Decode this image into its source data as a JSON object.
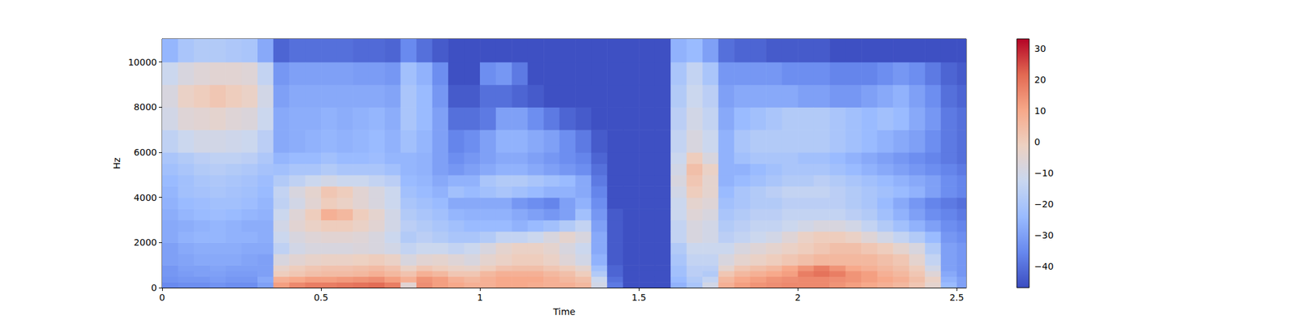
{
  "chart_data": {
    "type": "heatmap",
    "x_label": "Time",
    "y_label": "Hz",
    "xlim": [
      0,
      2.53
    ],
    "xticks": [
      0,
      0.5,
      1,
      1.5,
      2,
      2.5
    ],
    "ylim": [
      0,
      11025
    ],
    "yticks": [
      0,
      2000,
      4000,
      6000,
      8000,
      10000
    ],
    "colorbar_range": [
      -46.8,
      33.2
    ],
    "colorbar_ticks": [
      {
        "value": -40,
        "label": "−40"
      },
      {
        "value": -30,
        "label": "−30"
      },
      {
        "value": -20,
        "label": "−20"
      },
      {
        "value": -10,
        "label": "−10"
      },
      0,
      10,
      20,
      30
    ],
    "time_edges": [
      0,
      0.05,
      0.1,
      0.15,
      0.2,
      0.25,
      0.3,
      0.35,
      0.4,
      0.45,
      0.5,
      0.55,
      0.6,
      0.65,
      0.7,
      0.75,
      0.8,
      0.85,
      0.9,
      0.95,
      1.0,
      1.05,
      1.1,
      1.15,
      1.2,
      1.25,
      1.3,
      1.35,
      1.4,
      1.45,
      1.5,
      1.55,
      1.6,
      1.65,
      1.7,
      1.75,
      1.8,
      1.85,
      1.9,
      1.95,
      2.0,
      2.05,
      2.1,
      2.15,
      2.2,
      2.25,
      2.3,
      2.35,
      2.4,
      2.45,
      2.5,
      2.53
    ],
    "freq_edges": [
      0,
      250,
      500,
      750,
      1000,
      1500,
      2000,
      2500,
      3000,
      3500,
      4000,
      4500,
      5000,
      5500,
      6000,
      7000,
      8000,
      9000,
      10000,
      11025
    ],
    "db": [
      [
        -35,
        -33,
        -32,
        -32,
        -30,
        -30,
        -28,
        -28,
        -27,
        -26,
        -25,
        -24,
        -22,
        -20,
        -15,
        -10,
        -8,
        -12,
        -25
      ],
      [
        -34,
        -32,
        -31,
        -30,
        -29,
        -28,
        -26,
        -27,
        -25,
        -24,
        -22,
        -22,
        -20,
        -18,
        -12,
        -6,
        -2,
        -8,
        -20
      ],
      [
        -34,
        -32,
        -30,
        -30,
        -28,
        -27,
        -25,
        -26,
        -24,
        -23,
        -21,
        -20,
        -18,
        -16,
        -10,
        -5,
        0,
        -6,
        -18
      ],
      [
        -33,
        -31,
        -30,
        -29,
        -28,
        -27,
        -25,
        -25,
        -23,
        -22,
        -20,
        -19,
        -17,
        -15,
        -10,
        -4,
        2,
        -5,
        -18
      ],
      [
        -34,
        -32,
        -31,
        -30,
        -28,
        -27,
        -26,
        -26,
        -24,
        -22,
        -21,
        -20,
        -18,
        -15,
        -11,
        -6,
        0,
        -5,
        -19
      ],
      [
        -34,
        -32,
        -31,
        -30,
        -29,
        -28,
        -26,
        -27,
        -25,
        -23,
        -22,
        -21,
        -19,
        -16,
        -12,
        -7,
        -2,
        -6,
        -20
      ],
      [
        -30,
        -28,
        -30,
        -30,
        -30,
        -28,
        -27,
        -27,
        -26,
        -25,
        -24,
        -23,
        -21,
        -19,
        -16,
        -12,
        -10,
        -14,
        -28
      ],
      [
        12,
        8,
        0,
        -3,
        -8,
        -15,
        -12,
        -10,
        -12,
        -15,
        -14,
        -18,
        -22,
        -25,
        -28,
        -28,
        -30,
        -32,
        -42
      ],
      [
        16,
        10,
        2,
        0,
        -5,
        -10,
        -8,
        -5,
        -6,
        -10,
        -8,
        -15,
        -20,
        -24,
        -27,
        -27,
        -28,
        -30,
        -40
      ],
      [
        18,
        12,
        4,
        2,
        -3,
        -8,
        -6,
        -2,
        0,
        -5,
        -4,
        -12,
        -20,
        -24,
        -26,
        -27,
        -28,
        -30,
        -40
      ],
      [
        18,
        12,
        5,
        3,
        -2,
        -8,
        -5,
        0,
        8,
        0,
        2,
        -10,
        -18,
        -22,
        -25,
        -26,
        -28,
        -30,
        -40
      ],
      [
        19,
        13,
        5,
        3,
        -2,
        -8,
        -5,
        0,
        6,
        -2,
        0,
        -12,
        -20,
        -24,
        -26,
        -27,
        -28,
        -30,
        -40
      ],
      [
        20,
        14,
        6,
        4,
        -1,
        -7,
        -6,
        -2,
        0,
        -5,
        -5,
        -12,
        -20,
        -24,
        -25,
        -26,
        -28,
        -31,
        -41
      ],
      [
        21,
        15,
        8,
        5,
        0,
        -8,
        -8,
        -5,
        -4,
        -8,
        -8,
        -14,
        -20,
        -23,
        -24,
        -25,
        -28,
        -31,
        -41
      ],
      [
        18,
        12,
        6,
        3,
        -2,
        -10,
        -12,
        -10,
        -10,
        -12,
        -12,
        -16,
        -22,
        -25,
        -26,
        -27,
        -29,
        -32,
        -42
      ],
      [
        -5,
        8,
        3,
        -2,
        -8,
        -14,
        -18,
        -16,
        -18,
        -20,
        -22,
        -24,
        -25,
        -25,
        -22,
        -20,
        -20,
        -22,
        -35
      ],
      [
        15,
        14,
        8,
        2,
        -5,
        -12,
        -16,
        -18,
        -20,
        -22,
        -24,
        -25,
        -26,
        -26,
        -25,
        -24,
        -24,
        -26,
        -40
      ],
      [
        12,
        12,
        6,
        0,
        -4,
        -12,
        -18,
        -20,
        -22,
        -24,
        -26,
        -28,
        -30,
        -30,
        -30,
        -30,
        -32,
        -34,
        -44
      ],
      [
        10,
        8,
        2,
        -2,
        -6,
        -14,
        -20,
        -22,
        -25,
        -28,
        -22,
        -26,
        -32,
        -34,
        -36,
        -40,
        -44,
        -46,
        -46
      ],
      [
        8,
        6,
        2,
        -3,
        -8,
        -12,
        -20,
        -24,
        -26,
        -28,
        -24,
        -26,
        -30,
        -32,
        -34,
        -40,
        -44,
        -46,
        -46
      ],
      [
        8,
        8,
        6,
        0,
        -4,
        -8,
        -18,
        -24,
        -26,
        -28,
        -22,
        -20,
        -28,
        -30,
        -30,
        -38,
        -40,
        -34,
        -46
      ],
      [
        10,
        10,
        8,
        3,
        -2,
        -4,
        -14,
        -24,
        -26,
        -28,
        -20,
        -18,
        -26,
        -28,
        -26,
        -30,
        -40,
        -32,
        -46
      ],
      [
        10,
        10,
        8,
        4,
        0,
        -2,
        -14,
        -26,
        -28,
        -32,
        -22,
        -18,
        -26,
        -28,
        -26,
        -30,
        -42,
        -38,
        -46
      ],
      [
        9,
        10,
        8,
        4,
        0,
        -2,
        -12,
        -24,
        -30,
        -34,
        -24,
        -20,
        -28,
        -30,
        -28,
        -34,
        -44,
        -46,
        -46
      ],
      [
        8,
        8,
        6,
        2,
        -2,
        -4,
        -8,
        -22,
        -32,
        -36,
        -26,
        -22,
        -30,
        -32,
        -30,
        -38,
        -46,
        -46,
        -46
      ],
      [
        8,
        6,
        4,
        0,
        -6,
        -8,
        -4,
        -18,
        -30,
        -30,
        -26,
        -24,
        -32,
        -34,
        -34,
        -42,
        -46,
        -46,
        -46
      ],
      [
        6,
        4,
        0,
        -4,
        -10,
        -12,
        -8,
        -14,
        -22,
        -26,
        -28,
        -28,
        -34,
        -36,
        -38,
        -44,
        -46,
        -46,
        -46
      ],
      [
        -10,
        -12,
        -18,
        -22,
        -26,
        -28,
        -28,
        -30,
        -32,
        -34,
        -36,
        -38,
        -40,
        -42,
        -44,
        -46,
        -46,
        -46,
        -46
      ],
      [
        -38,
        -40,
        -42,
        -42,
        -44,
        -44,
        -44,
        -44,
        -44,
        -46,
        -46,
        -46,
        -46,
        -46,
        -46,
        -46,
        -46,
        -46,
        -46
      ],
      [
        -46,
        -46,
        -46,
        -46,
        -46,
        -46,
        -46,
        -46,
        -46,
        -46,
        -46,
        -46,
        -46,
        -46,
        -46,
        -46,
        -46,
        -46,
        -46
      ],
      [
        -46,
        -46,
        -46,
        -46,
        -46,
        -46,
        -46,
        -46,
        -46,
        -46,
        -46,
        -46,
        -46,
        -46,
        -46,
        -46,
        -46,
        -46,
        -46
      ],
      [
        -46,
        -46,
        -46,
        -46,
        -46,
        -46,
        -46,
        -46,
        -46,
        -46,
        -46,
        -46,
        -46,
        -46,
        -46,
        -46,
        -46,
        -46,
        -46
      ],
      [
        -26,
        -24,
        -22,
        -22,
        -20,
        -18,
        -14,
        -14,
        -12,
        -12,
        -10,
        -8,
        -10,
        -12,
        -14,
        -16,
        -18,
        -20,
        -26
      ],
      [
        -20,
        -18,
        -16,
        -16,
        -14,
        -12,
        -8,
        -8,
        -6,
        -4,
        0,
        2,
        4,
        0,
        -8,
        -10,
        -12,
        -14,
        -24
      ],
      [
        -10,
        -14,
        -18,
        -16,
        -14,
        -12,
        -10,
        -10,
        -8,
        -6,
        -4,
        -4,
        -2,
        -8,
        -12,
        -14,
        -16,
        -20,
        -30
      ],
      [
        8,
        6,
        2,
        -4,
        -8,
        -12,
        -16,
        -18,
        -20,
        -22,
        -24,
        -26,
        -26,
        -26,
        -26,
        -28,
        -30,
        -32,
        -40
      ],
      [
        12,
        10,
        6,
        2,
        -4,
        -8,
        -14,
        -16,
        -18,
        -20,
        -20,
        -24,
        -26,
        -22,
        -20,
        -24,
        -28,
        -32,
        -42
      ],
      [
        14,
        12,
        8,
        4,
        -2,
        -6,
        -12,
        -14,
        -16,
        -18,
        -18,
        -22,
        -24,
        -20,
        -18,
        -22,
        -28,
        -32,
        -42
      ],
      [
        15,
        14,
        10,
        6,
        0,
        -4,
        -10,
        -14,
        -16,
        -18,
        -16,
        -20,
        -22,
        -20,
        -18,
        -20,
        -28,
        -32,
        -44
      ],
      [
        16,
        15,
        12,
        10,
        2,
        -2,
        -6,
        -12,
        -14,
        -16,
        -14,
        -18,
        -20,
        -20,
        -18,
        -18,
        -28,
        -34,
        -44
      ],
      [
        16,
        16,
        18,
        14,
        4,
        0,
        -2,
        -10,
        -14,
        -16,
        -14,
        -18,
        -20,
        -22,
        -18,
        -18,
        -30,
        -34,
        -44
      ],
      [
        16,
        16,
        20,
        18,
        6,
        2,
        0,
        -8,
        -14,
        -16,
        -14,
        -16,
        -20,
        -22,
        -18,
        -18,
        -30,
        -34,
        -44
      ],
      [
        14,
        15,
        18,
        14,
        6,
        4,
        0,
        -8,
        -14,
        -16,
        -16,
        -18,
        -22,
        -24,
        -20,
        -20,
        -32,
        -36,
        -46
      ],
      [
        12,
        14,
        14,
        10,
        6,
        4,
        -2,
        -10,
        -16,
        -18,
        -18,
        -20,
        -24,
        -26,
        -22,
        -22,
        -32,
        -36,
        -46
      ],
      [
        10,
        12,
        12,
        8,
        6,
        2,
        -6,
        -14,
        -18,
        -20,
        -20,
        -22,
        -26,
        -28,
        -24,
        -24,
        -30,
        -36,
        -46
      ],
      [
        8,
        10,
        8,
        6,
        4,
        0,
        -10,
        -18,
        -22,
        -24,
        -22,
        -24,
        -28,
        -30,
        -26,
        -22,
        -28,
        -34,
        -46
      ],
      [
        6,
        8,
        6,
        4,
        2,
        -4,
        -14,
        -22,
        -26,
        -28,
        -24,
        -26,
        -30,
        -32,
        -28,
        -24,
        -26,
        -32,
        -46
      ],
      [
        2,
        4,
        2,
        0,
        -4,
        -8,
        -18,
        -26,
        -30,
        -32,
        -26,
        -28,
        -32,
        -34,
        -30,
        -28,
        -30,
        -34,
        -46
      ],
      [
        -4,
        -2,
        -6,
        -10,
        -14,
        -18,
        -24,
        -30,
        -34,
        -36,
        -30,
        -30,
        -34,
        -36,
        -34,
        -32,
        -34,
        -38,
        -46
      ],
      [
        -24,
        -26,
        -28,
        -30,
        -30,
        -30,
        -32,
        -34,
        -36,
        -38,
        -34,
        -34,
        -36,
        -38,
        -38,
        -38,
        -40,
        -42,
        -46
      ],
      [
        -30,
        -30,
        -32,
        -32,
        -32,
        -32,
        -34,
        -36,
        -38,
        -40,
        -36,
        -36,
        -38,
        -40,
        -40,
        -40,
        -42,
        -44,
        -46
      ]
    ]
  }
}
